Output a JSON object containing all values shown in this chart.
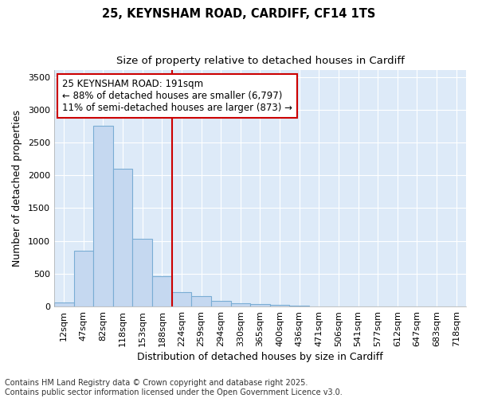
{
  "title1": "25, KEYNSHAM ROAD, CARDIFF, CF14 1TS",
  "title2": "Size of property relative to detached houses in Cardiff",
  "xlabel": "Distribution of detached houses by size in Cardiff",
  "ylabel": "Number of detached properties",
  "categories": [
    "12sqm",
    "47sqm",
    "82sqm",
    "118sqm",
    "153sqm",
    "188sqm",
    "224sqm",
    "259sqm",
    "294sqm",
    "330sqm",
    "365sqm",
    "400sqm",
    "436sqm",
    "471sqm",
    "506sqm",
    "541sqm",
    "577sqm",
    "612sqm",
    "647sqm",
    "683sqm",
    "718sqm"
  ],
  "values": [
    60,
    850,
    2760,
    2100,
    1030,
    460,
    215,
    155,
    85,
    50,
    35,
    20,
    10,
    5,
    2,
    1,
    0,
    0,
    0,
    0,
    0
  ],
  "bar_color": "#c5d8f0",
  "bar_edge_color": "#7aadd4",
  "vline_color": "#cc0000",
  "annotation_text": "25 KEYNSHAM ROAD: 191sqm\n← 88% of detached houses are smaller (6,797)\n11% of semi-detached houses are larger (873) →",
  "annotation_box_color": "#cc0000",
  "ylim": [
    0,
    3600
  ],
  "yticks": [
    0,
    500,
    1000,
    1500,
    2000,
    2500,
    3000,
    3500
  ],
  "fig_bg_color": "#ffffff",
  "plot_bg_color": "#ddeaf8",
  "grid_color": "#ffffff",
  "footnote": "Contains HM Land Registry data © Crown copyright and database right 2025.\nContains public sector information licensed under the Open Government Licence v3.0.",
  "title_fontsize": 10.5,
  "subtitle_fontsize": 9.5,
  "tick_fontsize": 8,
  "label_fontsize": 9,
  "annot_fontsize": 8.5,
  "footnote_fontsize": 7
}
